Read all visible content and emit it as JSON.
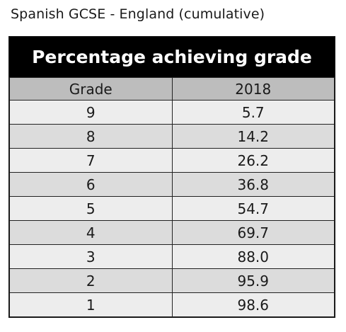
{
  "caption": "Spanish GCSE - England (cumulative)",
  "table": {
    "title": "Percentage achieving grade",
    "headers": [
      "Grade",
      "2018"
    ],
    "rows": [
      [
        "9",
        "5.7"
      ],
      [
        "8",
        "14.2"
      ],
      [
        "7",
        "26.2"
      ],
      [
        "6",
        "36.8"
      ],
      [
        "5",
        "54.7"
      ],
      [
        "4",
        "69.7"
      ],
      [
        "3",
        "88.0"
      ],
      [
        "2",
        "95.9"
      ],
      [
        "1",
        "98.6"
      ]
    ]
  },
  "colors": {
    "title_bg": "#000000",
    "title_text": "#ffffff",
    "header_bg": "#bdbdbd",
    "row_light": "#ededed",
    "row_dark": "#dcdcdc"
  }
}
